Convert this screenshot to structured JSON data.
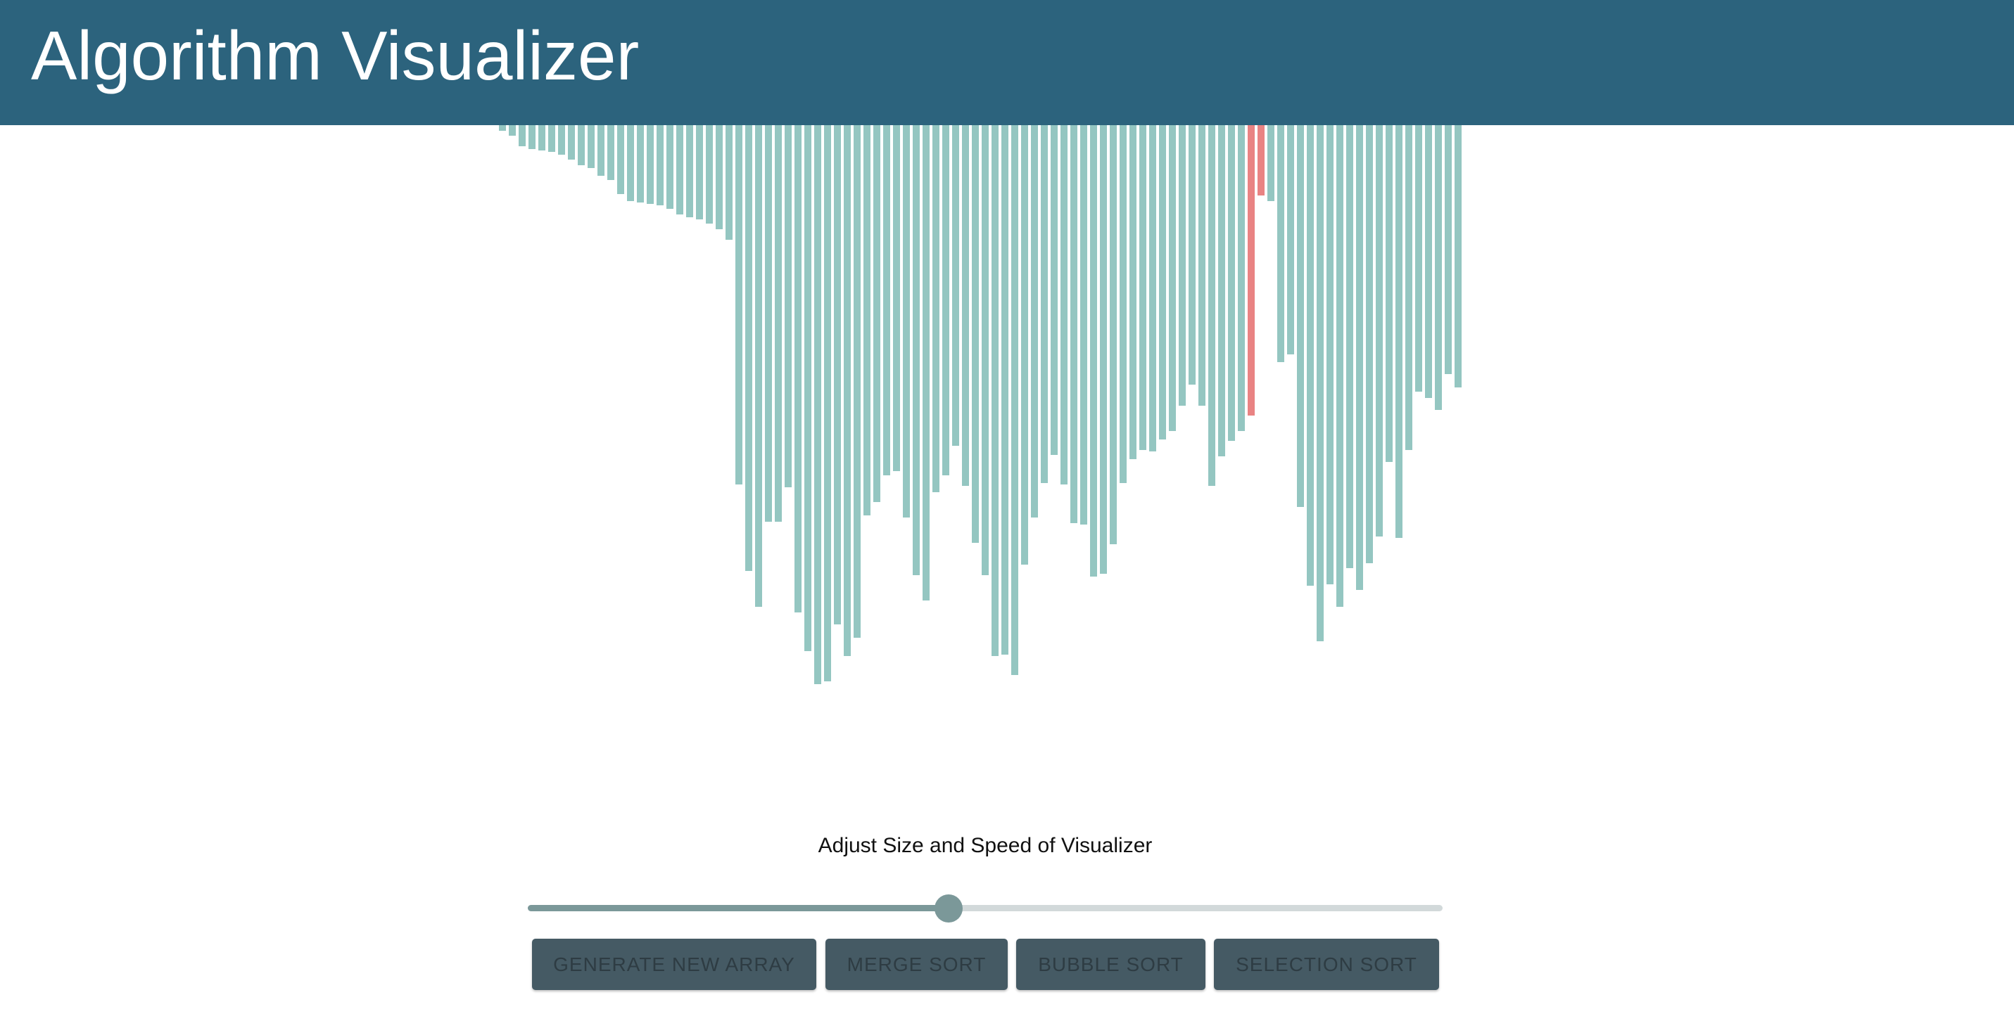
{
  "header": {
    "title": "Algorithm Visualizer"
  },
  "visualizer": {
    "colors": {
      "bar_default": "#94c6c1",
      "bar_active": "#e98383"
    },
    "active_indices": [
      76,
      77
    ],
    "bars": [
      4,
      7,
      14,
      16,
      17,
      18,
      20,
      23,
      27,
      29,
      34,
      37,
      46,
      51,
      52,
      53,
      54,
      56,
      60,
      62,
      63,
      66,
      70,
      77,
      241,
      299,
      323,
      266,
      266,
      243,
      327,
      353,
      375,
      373,
      335,
      356,
      344,
      262,
      253,
      235,
      232,
      263,
      302,
      319,
      246,
      235,
      215,
      242,
      280,
      302,
      356,
      355,
      369,
      295,
      263,
      240,
      221,
      241,
      267,
      268,
      303,
      301,
      281,
      240,
      224,
      218,
      219,
      211,
      205,
      188,
      174,
      188,
      242,
      222,
      212,
      205,
      195,
      47,
      51,
      159,
      154,
      256,
      309,
      346,
      308,
      323,
      297,
      312,
      294,
      276,
      226,
      277,
      218,
      179,
      183,
      191,
      167,
      176
    ]
  },
  "controls": {
    "label": "Adjust Size and Speed of Visualizer",
    "slider": {
      "value": 0.46,
      "colors": {
        "track": "#d2d9da",
        "fill": "#7b9899",
        "thumb": "#7b9899"
      }
    },
    "buttons": [
      {
        "label": "GENERATE NEW ARRAY"
      },
      {
        "label": "MERGE SORT"
      },
      {
        "label": "BUBBLE SORT"
      },
      {
        "label": "SELECTION SORT"
      }
    ]
  }
}
